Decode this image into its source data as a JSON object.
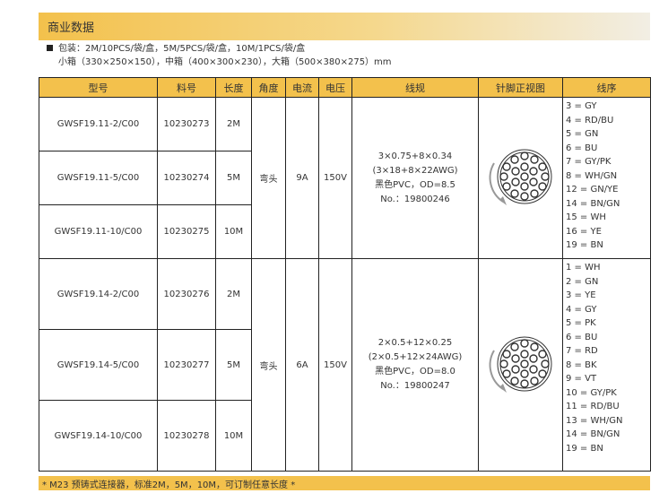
{
  "title": "商业数据",
  "packaging": {
    "line1": "包装：2M/10PCS/袋/盒，5M/5PCS/袋/盒，10M/1PCS/袋/盒",
    "line2": "小箱（330×250×150），中箱（400×300×230），大箱（500×380×275）mm"
  },
  "headers": [
    "型号",
    "料号",
    "长度",
    "角度",
    "电流",
    "电压",
    "线规",
    "针脚正视图",
    "线序"
  ],
  "groups": [
    {
      "rows": [
        {
          "model": "GWSF19.11-2/C00",
          "part": "10230273",
          "length": "2M"
        },
        {
          "model": "GWSF19.11-5/C00",
          "part": "10230274",
          "length": "5M"
        },
        {
          "model": "GWSF19.11-10/C00",
          "part": "10230275",
          "length": "10M"
        }
      ],
      "angle": "弯头",
      "current": "9A",
      "voltage": "150V",
      "spec": [
        "3×0.75+8×0.34",
        "(3×18+8×22AWG)",
        "黑色PVC，OD=8.5",
        "No.：19800246"
      ],
      "wires": [
        "3 = GY",
        "4 = RD/BU",
        "5 = GN",
        "6 = BU",
        "7 = GY/PK",
        "8 = WH/GN",
        "12 = GN/YE",
        "14 = BN/GN",
        "15 = WH",
        "16 = YE",
        "19 = BN"
      ]
    },
    {
      "rows": [
        {
          "model": "GWSF19.14-2/C00",
          "part": "10230276",
          "length": "2M"
        },
        {
          "model": "GWSF19.14-5/C00",
          "part": "10230277",
          "length": "5M"
        },
        {
          "model": "GWSF19.14-10/C00",
          "part": "10230278",
          "length": "10M"
        }
      ],
      "angle": "弯头",
      "current": "6A",
      "voltage": "150V",
      "spec": [
        "2×0.5+12×0.25",
        "(2×0.5+12×24AWG)",
        "黑色PVC，OD=8.0",
        "No.：19800247"
      ],
      "wires": [
        "1 = WH",
        "2 = GN",
        "3 = YE",
        "4 = GY",
        "5 = PK",
        "6 = BU",
        "7 = RD",
        "8 = BK",
        "9 = VT",
        "10 = GY/PK",
        "11 = RD/BU",
        "13 = WH/GN",
        "14 = BN/GN",
        "19 = BN"
      ]
    }
  ],
  "footer": "* M23 预铸式连接器，标准2M，5M，10M，可订制任意长度 *"
}
